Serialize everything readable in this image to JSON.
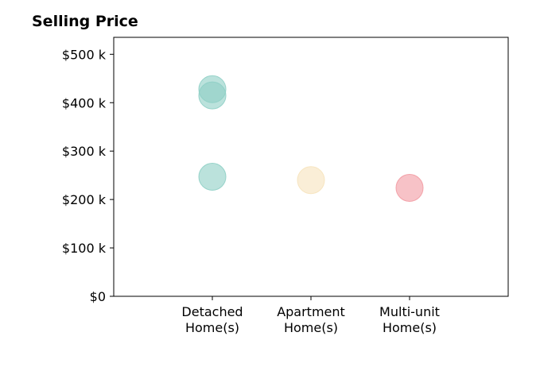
{
  "chart_data": {
    "type": "scatter",
    "title": "Selling Price",
    "xlabel": "",
    "ylabel": "",
    "categories": [
      [
        "Detached",
        "Home(s)"
      ],
      [
        "Apartment",
        "Home(s)"
      ],
      [
        "Multi-unit",
        "Home(s)"
      ]
    ],
    "y_ticks": [
      {
        "value": 0,
        "label": "$0"
      },
      {
        "value": 100000,
        "label": "$100 k"
      },
      {
        "value": 200000,
        "label": "$200 k"
      },
      {
        "value": 300000,
        "label": "$300 k"
      },
      {
        "value": 400000,
        "label": "$400 k"
      },
      {
        "value": 500000,
        "label": "$500 k"
      }
    ],
    "ylim": [
      0,
      535000
    ],
    "xlim": [
      -1,
      3
    ],
    "grid": false,
    "legend": "none",
    "points": [
      {
        "category": "Detached Home(s)",
        "x": 0,
        "y": 428000,
        "color": "#8ecfc5"
      },
      {
        "category": "Detached Home(s)",
        "x": 0,
        "y": 415000,
        "color": "#8ecfc5"
      },
      {
        "category": "Detached Home(s)",
        "x": 0,
        "y": 247000,
        "color": "#8ecfc5"
      },
      {
        "category": "Apartment Home(s)",
        "x": 1,
        "y": 240000,
        "color": "#f6e3bd"
      },
      {
        "category": "Multi-unit Home(s)",
        "x": 2,
        "y": 224000,
        "color": "#f29aa2"
      }
    ]
  }
}
